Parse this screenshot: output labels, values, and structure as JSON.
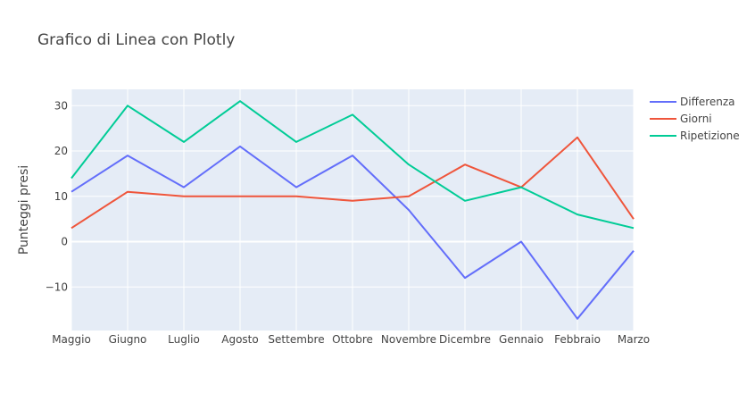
{
  "chart_data": {
    "type": "line",
    "title": "Grafico di Linea con Plotly",
    "xlabel": "",
    "ylabel": "Punteggi presi",
    "categories": [
      "Maggio",
      "Giugno",
      "Luglio",
      "Agosto",
      "Settembre",
      "Ottobre",
      "Novembre",
      "Dicembre",
      "Gennaio",
      "Febbraio",
      "Marzo"
    ],
    "ylim": [
      -19.6,
      33.6
    ],
    "yticks": [
      -10,
      0,
      10,
      20,
      30
    ],
    "grid": true,
    "legend_position": "top-right",
    "series": [
      {
        "name": "Differenza",
        "color": "#636efa",
        "values": [
          11,
          19,
          12,
          21,
          12,
          19,
          7,
          -8,
          0,
          -17,
          -2
        ]
      },
      {
        "name": "Giorni",
        "color": "#ef553b",
        "values": [
          3,
          11,
          10,
          10,
          10,
          9,
          10,
          17,
          12,
          23,
          5
        ]
      },
      {
        "name": "Ripetizione",
        "color": "#00cc96",
        "values": [
          14,
          30,
          22,
          31,
          22,
          28,
          17,
          9,
          12,
          6,
          3
        ]
      }
    ]
  },
  "colors": {
    "plot_background": "#e5ecf6",
    "grid": "#ffffff"
  }
}
